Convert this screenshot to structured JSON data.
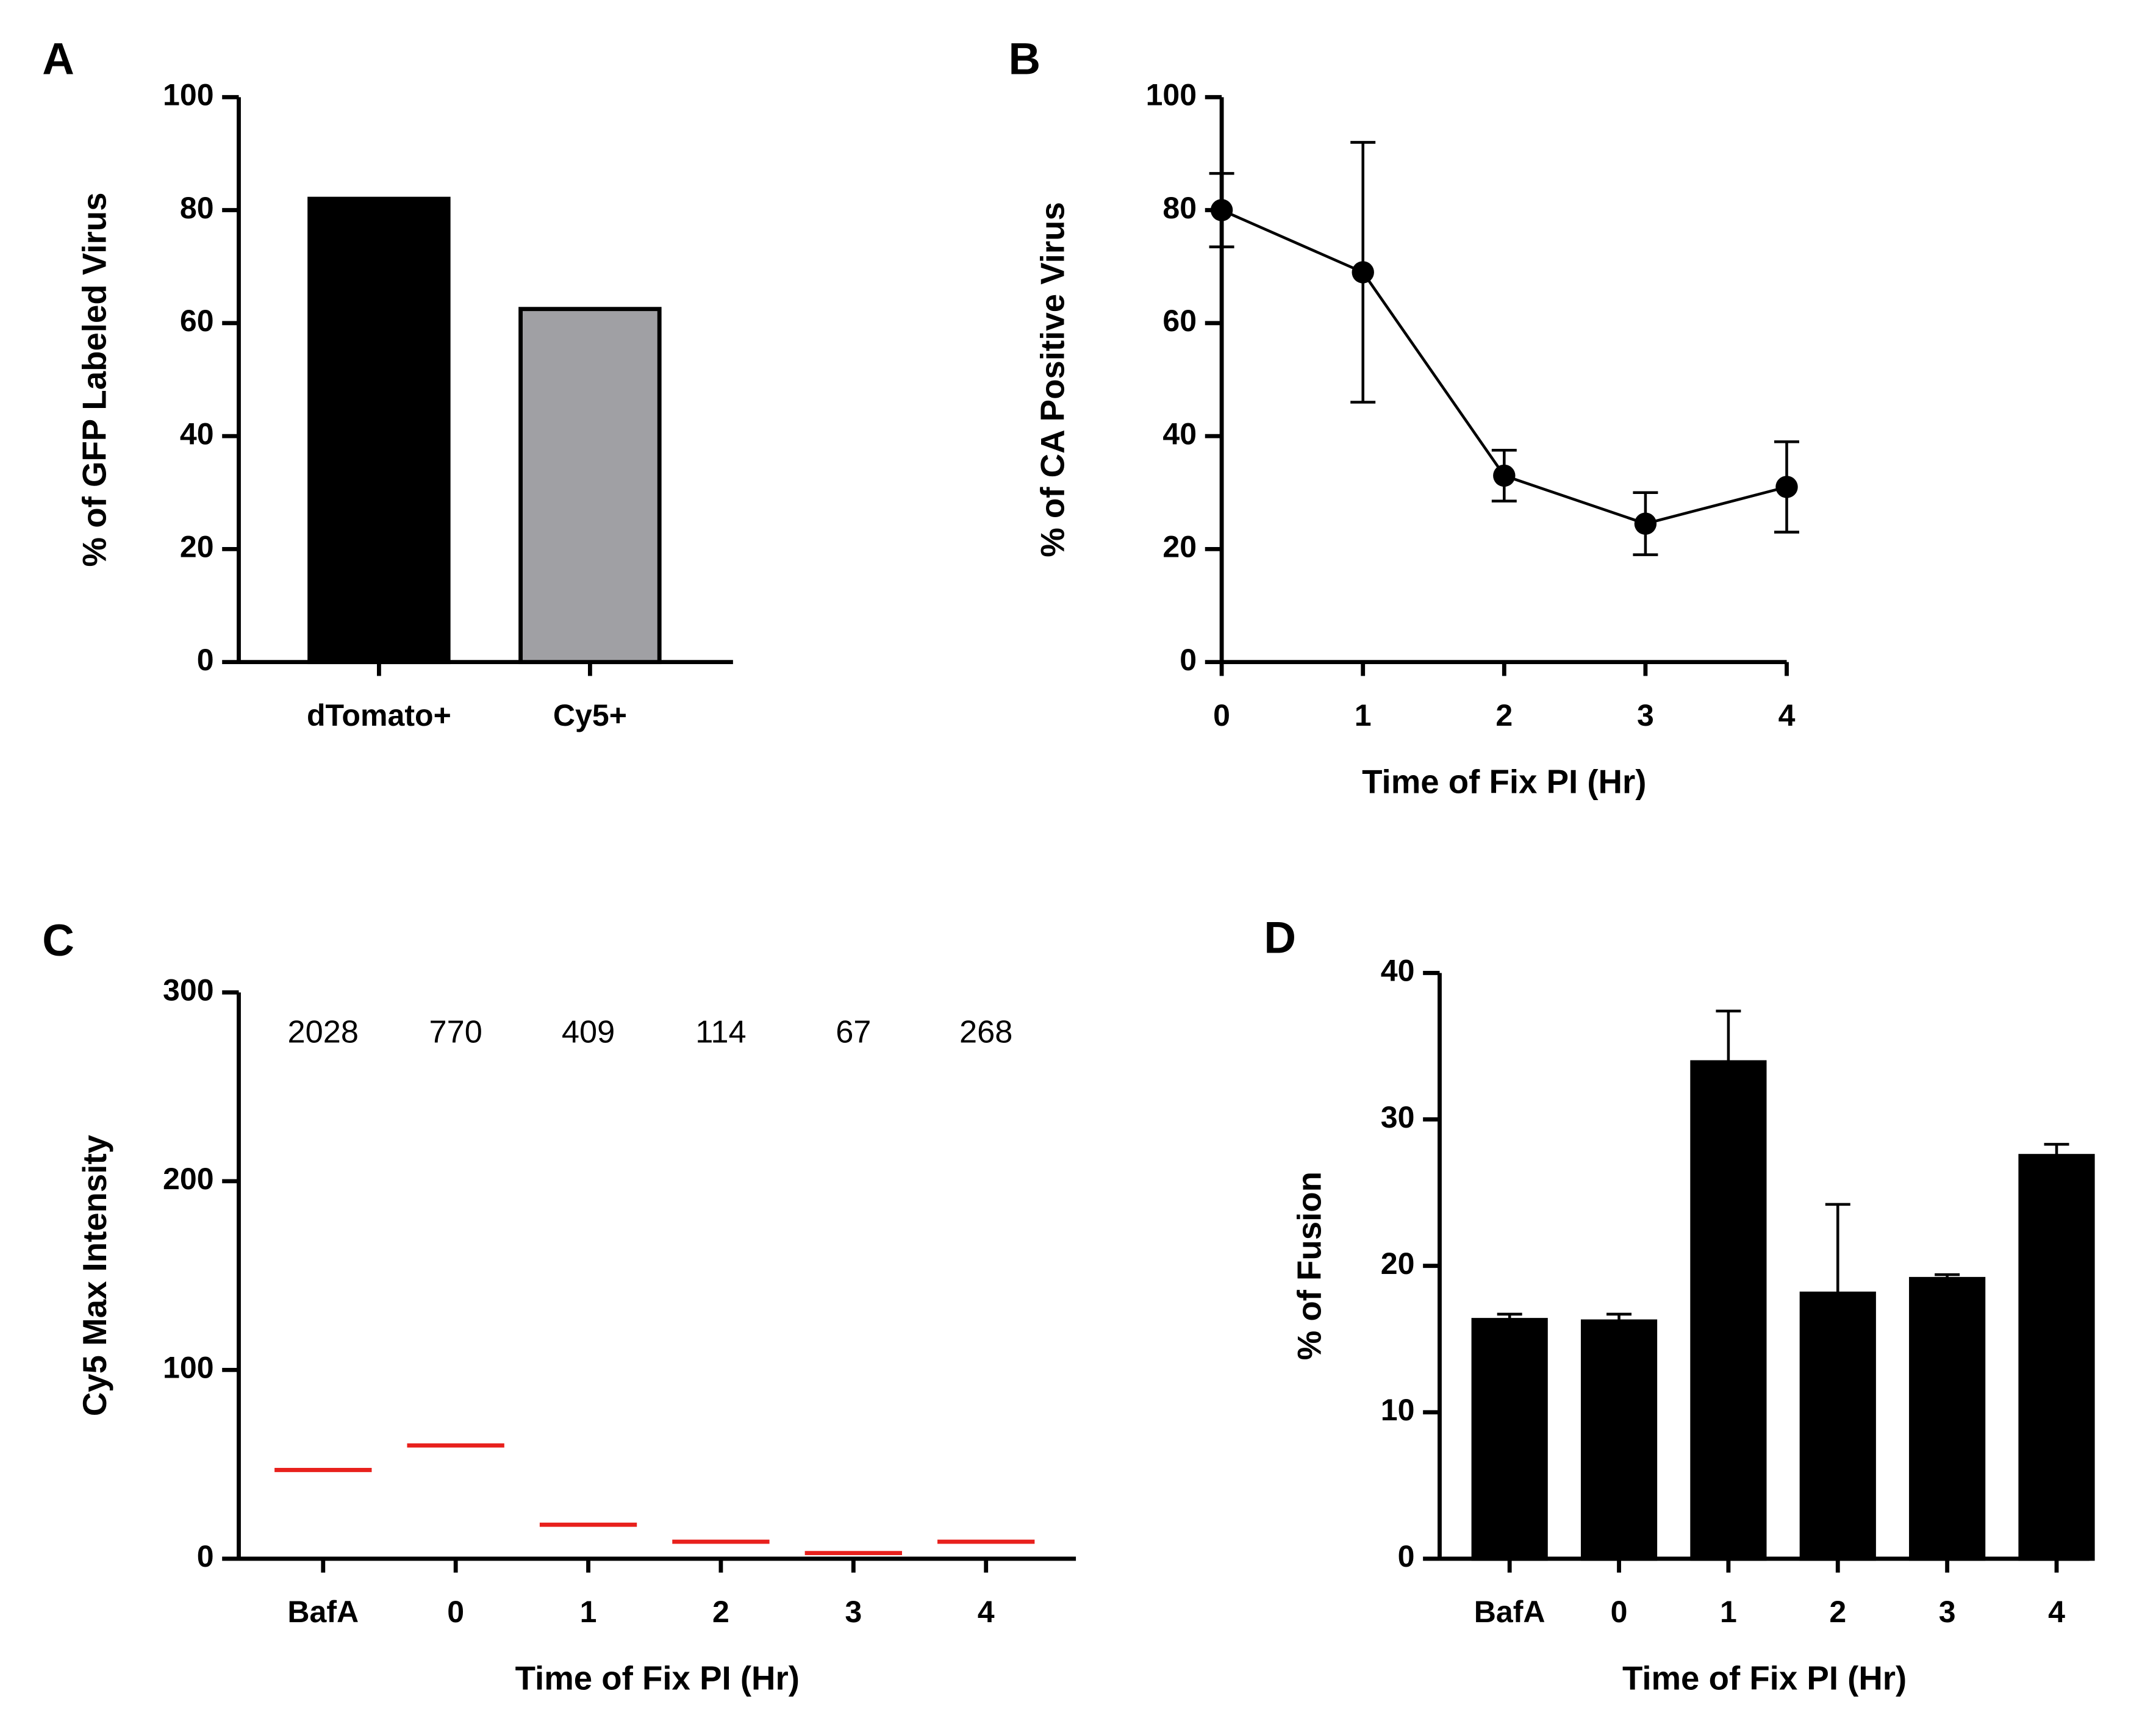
{
  "chart_data": [
    {
      "type": "bar",
      "panel": "A",
      "ylabel": "% of GFP Labeled Virus",
      "categories": [
        "dTomato+",
        "Cy5+"
      ],
      "values": [
        82,
        62.5
      ],
      "colors": [
        "#000000",
        "#a0a0a4"
      ],
      "ylim": [
        0,
        100
      ],
      "yticks": [
        0,
        20,
        40,
        60,
        80,
        100
      ]
    },
    {
      "type": "line",
      "panel": "B",
      "ylabel": "% of CA Positive Virus",
      "xlabel": "Time of Fix PI (Hr)",
      "x": [
        0,
        1,
        2,
        3,
        4
      ],
      "values": [
        80,
        69,
        33,
        24.5,
        31
      ],
      "errors": [
        6.5,
        23,
        4.5,
        5.5,
        8
      ],
      "color": "#000000",
      "xlim": [
        0,
        4
      ],
      "xticks": [
        0,
        1,
        2,
        3,
        4
      ],
      "ylim": [
        0,
        100
      ],
      "yticks": [
        0,
        20,
        40,
        60,
        80,
        100
      ]
    },
    {
      "type": "dot",
      "panel": "C",
      "ylabel": "Cy5 Max Intensity",
      "xlabel": "Time of Fix PI (Hr)",
      "categories": [
        "BafA",
        "0",
        "1",
        "2",
        "3",
        "4"
      ],
      "values": [
        47,
        60,
        18,
        9,
        3,
        9
      ],
      "annotations": [
        "2028",
        "770",
        "409",
        "114",
        "67",
        "268"
      ],
      "color": "#e8201c",
      "ylim": [
        0,
        300
      ],
      "yticks": [
        0,
        100,
        200,
        300
      ]
    },
    {
      "type": "bar",
      "panel": "D",
      "ylabel": "% of Fusion",
      "xlabel": "Time of Fix PI (Hr)",
      "categories": [
        "BafA",
        "0",
        "1",
        "2",
        "3",
        "4"
      ],
      "values": [
        16.3,
        16.2,
        33.9,
        18.1,
        19.1,
        27.5
      ],
      "errors": [
        0.4,
        0.5,
        3.5,
        6.1,
        0.3,
        0.8
      ],
      "colors": [
        "#000000",
        "#000000",
        "#000000",
        "#000000",
        "#000000",
        "#000000"
      ],
      "ylim": [
        0,
        40
      ],
      "yticks": [
        0,
        10,
        20,
        30,
        40
      ]
    }
  ]
}
